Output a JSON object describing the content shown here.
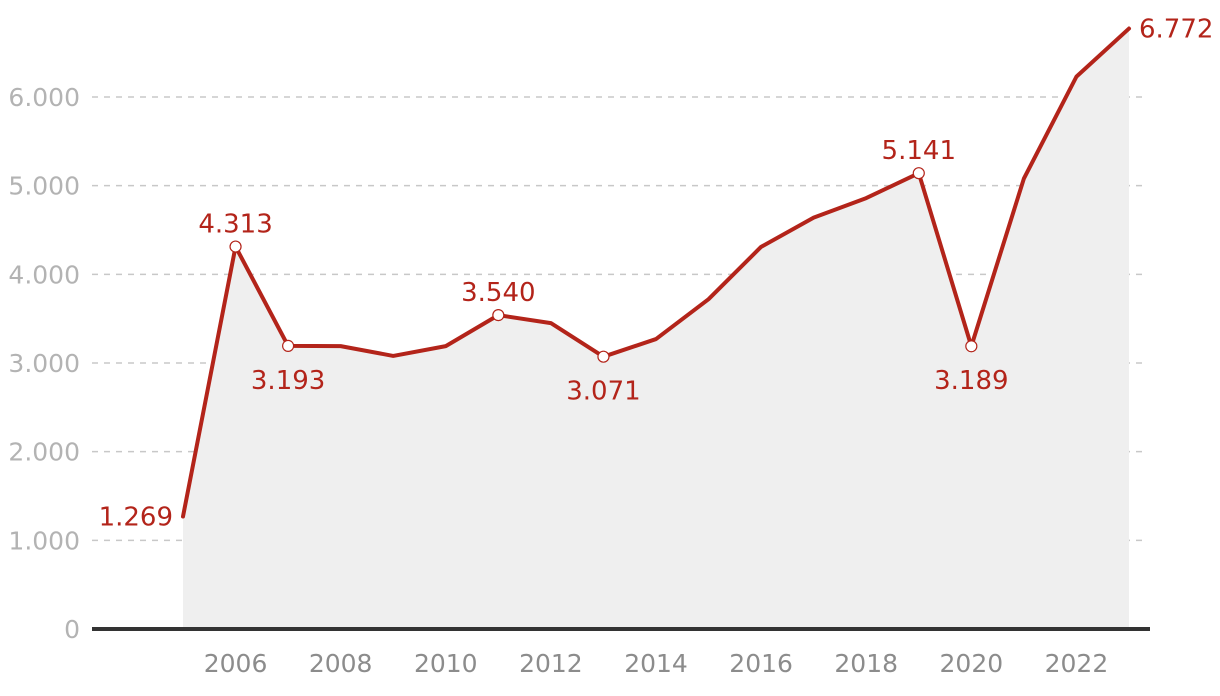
{
  "chart_data": {
    "type": "line",
    "title": "",
    "xlabel": "",
    "ylabel": "",
    "ylim": [
      0,
      7000
    ],
    "yticks": [
      0,
      1000,
      2000,
      3000,
      4000,
      5000,
      6000
    ],
    "ytick_labels": [
      "0",
      "1.000",
      "2.000",
      "3.000",
      "4.000",
      "5.000",
      "6.000"
    ],
    "xticks": [
      2006,
      2008,
      2010,
      2012,
      2014,
      2016,
      2018,
      2020,
      2022
    ],
    "xtick_labels": [
      "2006",
      "2008",
      "2010",
      "2012",
      "2014",
      "2016",
      "2018",
      "2020",
      "2022"
    ],
    "grid": "horizontal-dashed",
    "fill_area": true,
    "x": [
      2005,
      2006,
      2007,
      2008,
      2009,
      2010,
      2011,
      2012,
      2013,
      2014,
      2015,
      2016,
      2017,
      2018,
      2019,
      2020,
      2021,
      2022,
      2023
    ],
    "values": [
      1269,
      4313,
      3193,
      3190,
      3080,
      3190,
      3540,
      3450,
      3071,
      3270,
      3720,
      4310,
      4640,
      4860,
      5141,
      3189,
      5080,
      6230,
      6772
    ],
    "line_color": "#b3241a",
    "area_color": "#efefef",
    "annotations": [
      {
        "x": 2005,
        "y": 1269,
        "label": "1.269",
        "marker": false,
        "placement": "left"
      },
      {
        "x": 2006,
        "y": 4313,
        "label": "4.313",
        "marker": true,
        "placement": "above"
      },
      {
        "x": 2007,
        "y": 3193,
        "label": "3.193",
        "marker": true,
        "placement": "below"
      },
      {
        "x": 2011,
        "y": 3540,
        "label": "3.540",
        "marker": true,
        "placement": "above"
      },
      {
        "x": 2013,
        "y": 3071,
        "label": "3.071",
        "marker": true,
        "placement": "below"
      },
      {
        "x": 2019,
        "y": 5141,
        "label": "5.141",
        "marker": true,
        "placement": "above"
      },
      {
        "x": 2020,
        "y": 3189,
        "label": "3.189",
        "marker": true,
        "placement": "below"
      },
      {
        "x": 2023,
        "y": 6772,
        "label": "6.772",
        "marker": false,
        "placement": "right"
      }
    ]
  }
}
